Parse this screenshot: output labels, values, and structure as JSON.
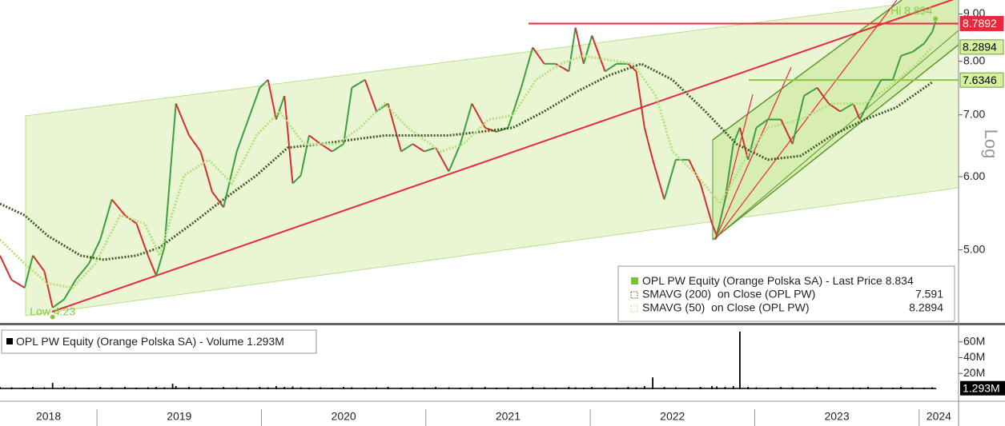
{
  "chart_data": [
    {
      "type": "line",
      "log_scale": true,
      "grid": false,
      "y_label": "Log",
      "xlim": [
        2018.41,
        2024.24
      ],
      "xticks": [
        2019,
        2020,
        2021,
        2022,
        2023,
        2024
      ],
      "year_labels": [
        "2018",
        "2019",
        "2020",
        "2021",
        "2022",
        "2023",
        "2024"
      ],
      "ylim": [
        4.16,
        9.32
      ],
      "yticks": [
        {
          "value": 5,
          "label": "5.00"
        },
        {
          "value": 6,
          "label": "6.00"
        },
        {
          "value": 7,
          "label": "7.00"
        },
        {
          "value": 8,
          "label": "8.00"
        },
        {
          "value": 9,
          "label": "9.00"
        }
      ],
      "series": [
        {
          "name": "OPL PW Equity (Orange Polska SA) - Last Price",
          "last_value": 8.834,
          "style": "candles",
          "color": "#7cc232",
          "up_color": "#3c9e3c",
          "down_color": "#d2302e",
          "x": [
            2018.41,
            2018.48,
            2018.56,
            2018.61,
            2018.68,
            2018.73,
            2018.8,
            2018.87,
            2018.95,
            2019.02,
            2019.09,
            2019.17,
            2019.24,
            2019.31,
            2019.36,
            2019.41,
            2019.46,
            2019.48,
            2019.56,
            2019.63,
            2019.7,
            2019.77,
            2019.85,
            2019.92,
            2019.99,
            2020.04,
            2020.09,
            2020.14,
            2020.19,
            2020.24,
            2020.29,
            2020.36,
            2020.43,
            2020.5,
            2020.55,
            2020.63,
            2020.7,
            2020.77,
            2020.85,
            2020.92,
            2020.99,
            2021.06,
            2021.14,
            2021.21,
            2021.28,
            2021.36,
            2021.43,
            2021.5,
            2021.58,
            2021.65,
            2021.72,
            2021.79,
            2021.87,
            2021.91,
            2021.96,
            2022.01,
            2022.09,
            2022.16,
            2022.23,
            2022.28,
            2022.33,
            2022.38,
            2022.45,
            2022.52,
            2022.6,
            2022.67,
            2022.74,
            2022.77,
            2022.82,
            2022.87,
            2022.91,
            2022.96,
            2023.01,
            2023.08,
            2023.16,
            2023.23,
            2023.3,
            2023.38,
            2023.45,
            2023.52,
            2023.6,
            2023.64,
            2023.69,
            2023.77,
            2023.84,
            2023.89,
            2023.96,
            2024.03,
            2024.08,
            2024.1
          ],
          "values": [
            4.93,
            4.64,
            4.55,
            4.93,
            4.74,
            4.33,
            4.42,
            4.64,
            4.83,
            5.13,
            5.67,
            5.45,
            5.34,
            4.93,
            4.69,
            5.03,
            6.51,
            7.2,
            6.65,
            6.39,
            5.78,
            5.56,
            6.39,
            6.92,
            7.49,
            7.64,
            6.92,
            7.34,
            5.9,
            6.02,
            6.65,
            6.51,
            6.39,
            6.51,
            7.49,
            7.64,
            7.06,
            7.2,
            6.39,
            6.51,
            6.39,
            6.45,
            6.08,
            6.51,
            7.2,
            6.78,
            6.71,
            6.78,
            7.49,
            8.28,
            7.95,
            7.95,
            7.8,
            8.7,
            7.95,
            8.53,
            7.8,
            7.95,
            7.95,
            7.8,
            6.78,
            6.26,
            5.67,
            6.26,
            6.26,
            5.9,
            5.34,
            5.18,
            5.67,
            6.51,
            6.78,
            6.26,
            6.78,
            6.92,
            6.92,
            6.51,
            7.34,
            7.49,
            7.2,
            7.06,
            7.2,
            6.92,
            7.2,
            7.64,
            7.64,
            8.11,
            8.19,
            8.36,
            8.61,
            8.83
          ]
        },
        {
          "name": "SMAVG (200)  on Close (OPL PW)",
          "last_value": 7.591,
          "style": "dotted",
          "color": "#3f5a28",
          "x": [
            2018.41,
            2018.56,
            2018.7,
            2018.9,
            2019.04,
            2019.24,
            2019.38,
            2019.58,
            2019.77,
            2019.97,
            2020.16,
            2020.36,
            2020.55,
            2020.75,
            2020.94,
            2021.14,
            2021.33,
            2021.53,
            2021.72,
            2021.92,
            2022.11,
            2022.31,
            2022.5,
            2022.7,
            2022.89,
            2023.08,
            2023.28,
            2023.47,
            2023.67,
            2023.86,
            2024.08
          ],
          "values": [
            5.61,
            5.45,
            5.18,
            4.93,
            4.88,
            4.93,
            5.03,
            5.34,
            5.67,
            6.02,
            6.45,
            6.51,
            6.58,
            6.65,
            6.65,
            6.65,
            6.71,
            6.78,
            7.06,
            7.42,
            7.72,
            7.95,
            7.64,
            7.06,
            6.51,
            6.26,
            6.32,
            6.65,
            6.92,
            7.13,
            7.591
          ]
        },
        {
          "name": "SMAVG (50)  on Close (OPL PW)",
          "last_value": 8.2894,
          "style": "dotted",
          "color": "#b4e07c",
          "x": [
            2018.41,
            2018.56,
            2018.7,
            2018.85,
            2018.99,
            2019.14,
            2019.29,
            2019.38,
            2019.53,
            2019.68,
            2019.82,
            2019.97,
            2020.11,
            2020.26,
            2020.46,
            2020.6,
            2020.75,
            2020.89,
            2021.09,
            2021.23,
            2021.38,
            2021.53,
            2021.67,
            2021.82,
            2021.96,
            2022.11,
            2022.26,
            2022.4,
            2022.5,
            2022.65,
            2022.79,
            2022.94,
            2023.08,
            2023.28,
            2023.47,
            2023.67,
            2023.81,
            2023.96,
            2024.08
          ],
          "values": [
            5.13,
            4.83,
            4.6,
            4.55,
            4.83,
            5.45,
            5.34,
            4.93,
            6.02,
            6.26,
            5.9,
            6.65,
            7.06,
            6.51,
            6.51,
            6.78,
            7.2,
            6.78,
            6.39,
            6.51,
            6.92,
            6.99,
            7.64,
            7.95,
            8.11,
            8.03,
            7.95,
            7.34,
            6.39,
            6.02,
            5.61,
            6.26,
            6.78,
            6.92,
            7.2,
            7.2,
            7.49,
            7.87,
            8.2894
          ]
        }
      ],
      "levels": [
        {
          "value": 8.7892,
          "color": "#e8283c"
        },
        {
          "value": 7.6346,
          "color": "#8cc63f"
        }
      ],
      "annotations": [
        {
          "text": "Hi 8.894",
          "x": 2024.1,
          "value": 8.894,
          "color": "#8cc63f"
        },
        {
          "text": "Low 4.23",
          "x": 2018.73,
          "value": 4.23,
          "color": "#8cc63f"
        }
      ]
    },
    {
      "type": "bar",
      "xlim": [
        2018.41,
        2024.24
      ],
      "ylim": [
        0,
        80
      ],
      "yticks": [
        {
          "value": 20,
          "label": "20M"
        },
        {
          "value": 40,
          "label": "40M"
        },
        {
          "value": 60,
          "label": "60M"
        }
      ],
      "series": [
        {
          "name": "OPL PW Equity (Orange Polska SA) - Volume",
          "last_value": 1.293,
          "last_label": "1.293M",
          "color": "#000000",
          "x": [
            2018.41,
            2018.48,
            2018.56,
            2018.61,
            2018.68,
            2018.73,
            2018.8,
            2018.87,
            2018.95,
            2019.02,
            2019.09,
            2019.17,
            2019.24,
            2019.31,
            2019.36,
            2019.41,
            2019.46,
            2019.48,
            2019.56,
            2019.63,
            2019.7,
            2019.77,
            2019.85,
            2019.92,
            2019.99,
            2020.04,
            2020.09,
            2020.14,
            2020.19,
            2020.24,
            2020.29,
            2020.36,
            2020.43,
            2020.5,
            2020.55,
            2020.63,
            2020.7,
            2020.77,
            2020.85,
            2020.92,
            2020.99,
            2021.06,
            2021.14,
            2021.21,
            2021.28,
            2021.36,
            2021.43,
            2021.5,
            2021.58,
            2021.65,
            2021.72,
            2021.79,
            2021.87,
            2021.91,
            2021.96,
            2022.01,
            2022.09,
            2022.16,
            2022.23,
            2022.28,
            2022.33,
            2022.38,
            2022.45,
            2022.52,
            2022.6,
            2022.67,
            2022.74,
            2022.77,
            2022.82,
            2022.87,
            2022.91,
            2022.96,
            2023.01,
            2023.08,
            2023.16,
            2023.23,
            2023.3,
            2023.38,
            2023.45,
            2023.52,
            2023.6,
            2023.64,
            2023.69,
            2023.77,
            2023.84,
            2023.89,
            2023.96,
            2024.03,
            2024.08,
            2024.1
          ],
          "values": [
            3,
            2.5,
            2,
            3,
            2.5,
            8,
            3,
            2.5,
            2,
            3,
            2.5,
            3,
            2,
            2.5,
            3,
            2.5,
            7,
            4,
            3,
            2.5,
            2,
            3,
            2.5,
            2,
            3,
            2.5,
            4,
            3,
            3.5,
            2.5,
            2,
            2.5,
            2,
            3,
            2.5,
            2,
            2.5,
            3,
            2,
            2.5,
            2,
            3,
            2.5,
            2,
            2.5,
            3,
            2,
            2.5,
            2,
            3,
            2.5,
            2,
            3,
            2.5,
            2,
            3,
            2.5,
            2,
            3,
            2.5,
            4,
            15,
            3,
            2.5,
            2,
            3,
            4,
            3.5,
            3,
            4,
            73,
            3,
            2.5,
            2,
            3,
            2.5,
            2,
            3,
            2.5,
            2,
            2.5,
            2,
            3,
            2.5,
            2,
            3,
            2.5,
            2,
            2.5,
            1.293
          ]
        }
      ]
    }
  ]
}
